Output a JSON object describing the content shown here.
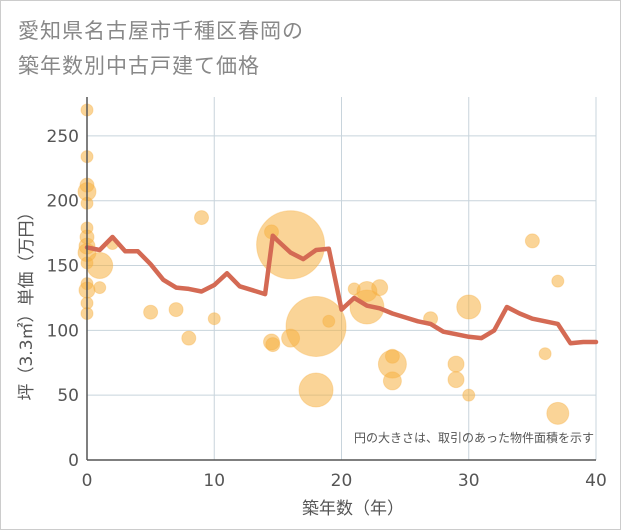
{
  "chart_data": {
    "type": "scatter",
    "title": [
      "愛知県名古屋市千種区春岡の",
      "築年数別中古戸建て価格"
    ],
    "xlabel": "築年数（年）",
    "ylabel": "坪（3.3㎡）単価（万円）",
    "xlim": [
      0,
      40
    ],
    "ylim": [
      0,
      280
    ],
    "xticks": [
      0,
      10,
      20,
      30,
      40
    ],
    "yticks": [
      0,
      50,
      100,
      150,
      200,
      250
    ],
    "note": "円の大きさは、取引のあった物件面積を示す",
    "colors": {
      "bubble": "#f5b041",
      "line": "#d46a54",
      "grid": "#c8d4dc",
      "axis": "#555555"
    },
    "bubbles": [
      {
        "x": 0,
        "y": 270,
        "s": 6
      },
      {
        "x": 0,
        "y": 234,
        "s": 6
      },
      {
        "x": 0,
        "y": 212,
        "s": 7
      },
      {
        "x": 0,
        "y": 207,
        "s": 9
      },
      {
        "x": 0,
        "y": 198,
        "s": 6
      },
      {
        "x": 0,
        "y": 179,
        "s": 6
      },
      {
        "x": 0,
        "y": 172,
        "s": 7
      },
      {
        "x": 0,
        "y": 165,
        "s": 8
      },
      {
        "x": 0,
        "y": 160,
        "s": 9
      },
      {
        "x": 0,
        "y": 152,
        "s": 6
      },
      {
        "x": 0,
        "y": 136,
        "s": 6
      },
      {
        "x": 0,
        "y": 131,
        "s": 8
      },
      {
        "x": 0,
        "y": 121,
        "s": 6
      },
      {
        "x": 0,
        "y": 113,
        "s": 6
      },
      {
        "x": 1,
        "y": 150,
        "s": 13
      },
      {
        "x": 1,
        "y": 133,
        "s": 6
      },
      {
        "x": 2,
        "y": 167,
        "s": 6
      },
      {
        "x": 5,
        "y": 114,
        "s": 7
      },
      {
        "x": 7,
        "y": 116,
        "s": 7
      },
      {
        "x": 8,
        "y": 94,
        "s": 7
      },
      {
        "x": 9,
        "y": 187,
        "s": 7
      },
      {
        "x": 10,
        "y": 109,
        "s": 6
      },
      {
        "x": 14.5,
        "y": 176,
        "s": 7
      },
      {
        "x": 14.5,
        "y": 91,
        "s": 8
      },
      {
        "x": 14.6,
        "y": 89,
        "s": 7
      },
      {
        "x": 16,
        "y": 94,
        "s": 9
      },
      {
        "x": 16,
        "y": 166,
        "s": 34
      },
      {
        "x": 18,
        "y": 103,
        "s": 30
      },
      {
        "x": 18,
        "y": 54,
        "s": 17
      },
      {
        "x": 19,
        "y": 107,
        "s": 6
      },
      {
        "x": 21,
        "y": 132,
        "s": 6
      },
      {
        "x": 22,
        "y": 130,
        "s": 10
      },
      {
        "x": 22,
        "y": 118,
        "s": 17
      },
      {
        "x": 23,
        "y": 133,
        "s": 8
      },
      {
        "x": 24,
        "y": 80,
        "s": 7
      },
      {
        "x": 24,
        "y": 74,
        "s": 14
      },
      {
        "x": 24,
        "y": 61,
        "s": 9
      },
      {
        "x": 27,
        "y": 109,
        "s": 7
      },
      {
        "x": 29,
        "y": 74,
        "s": 8
      },
      {
        "x": 29,
        "y": 62,
        "s": 8
      },
      {
        "x": 30,
        "y": 118,
        "s": 12
      },
      {
        "x": 30,
        "y": 50,
        "s": 6
      },
      {
        "x": 35,
        "y": 169,
        "s": 7
      },
      {
        "x": 36,
        "y": 82,
        "s": 6
      },
      {
        "x": 37,
        "y": 138,
        "s": 6
      },
      {
        "x": 37,
        "y": 36,
        "s": 11
      }
    ],
    "line": {
      "x": [
        0,
        1,
        2,
        3,
        4,
        5,
        6,
        7,
        8,
        9,
        10,
        11,
        12,
        13,
        14,
        14.6,
        15,
        16,
        17,
        18,
        19,
        20,
        21,
        22,
        23,
        24,
        25,
        26,
        27,
        28,
        29,
        30,
        31,
        32,
        33,
        34,
        35,
        36,
        37,
        38,
        39,
        40
      ],
      "y": [
        164,
        162,
        172,
        161,
        161,
        151,
        139,
        133,
        132,
        130,
        135,
        144,
        134,
        131,
        128,
        173,
        169,
        160,
        155,
        162,
        163,
        116,
        125,
        119,
        117,
        113,
        110,
        107,
        105,
        99,
        97,
        95,
        94,
        100,
        118,
        113,
        109,
        107,
        105,
        90,
        91,
        91
      ]
    }
  }
}
